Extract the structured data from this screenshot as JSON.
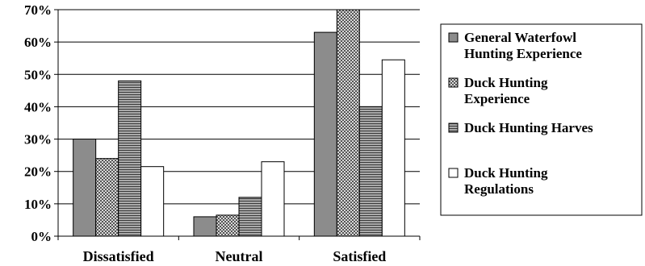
{
  "chart_data": {
    "type": "bar",
    "categories": [
      "Dissatisfied",
      "Neutral",
      "Satisfied"
    ],
    "y_tick_labels": [
      "0%",
      "10%",
      "20%",
      "30%",
      "40%",
      "50%",
      "60%",
      "70%"
    ],
    "ylim": [
      0,
      0.7
    ],
    "grid": true,
    "legend_position": "right",
    "series": [
      {
        "name": "General Waterfowl Hunting Experience",
        "legend_lines": [
          "General Waterfowl",
          "Hunting Experience"
        ],
        "values": [
          0.3,
          0.06,
          0.63
        ],
        "pattern": "solid-gray",
        "color": "#8c8c8c"
      },
      {
        "name": "Duck Hunting Experience",
        "legend_lines": [
          "Duck Hunting",
          "Experience"
        ],
        "values": [
          0.24,
          0.065,
          0.7
        ],
        "pattern": "checker",
        "color": "#b4b4b4"
      },
      {
        "name": "Duck Hunting Harves",
        "legend_lines": [
          "Duck Hunting Harves"
        ],
        "values": [
          0.48,
          0.12,
          0.4
        ],
        "pattern": "horizontal-lines",
        "color": "#7a7a7a"
      },
      {
        "name": "Duck Hunting Regulations",
        "legend_lines": [
          "Duck Hunting",
          "Regulations"
        ],
        "values": [
          0.215,
          0.23,
          0.545
        ],
        "pattern": "white",
        "color": "#ffffff"
      }
    ]
  }
}
